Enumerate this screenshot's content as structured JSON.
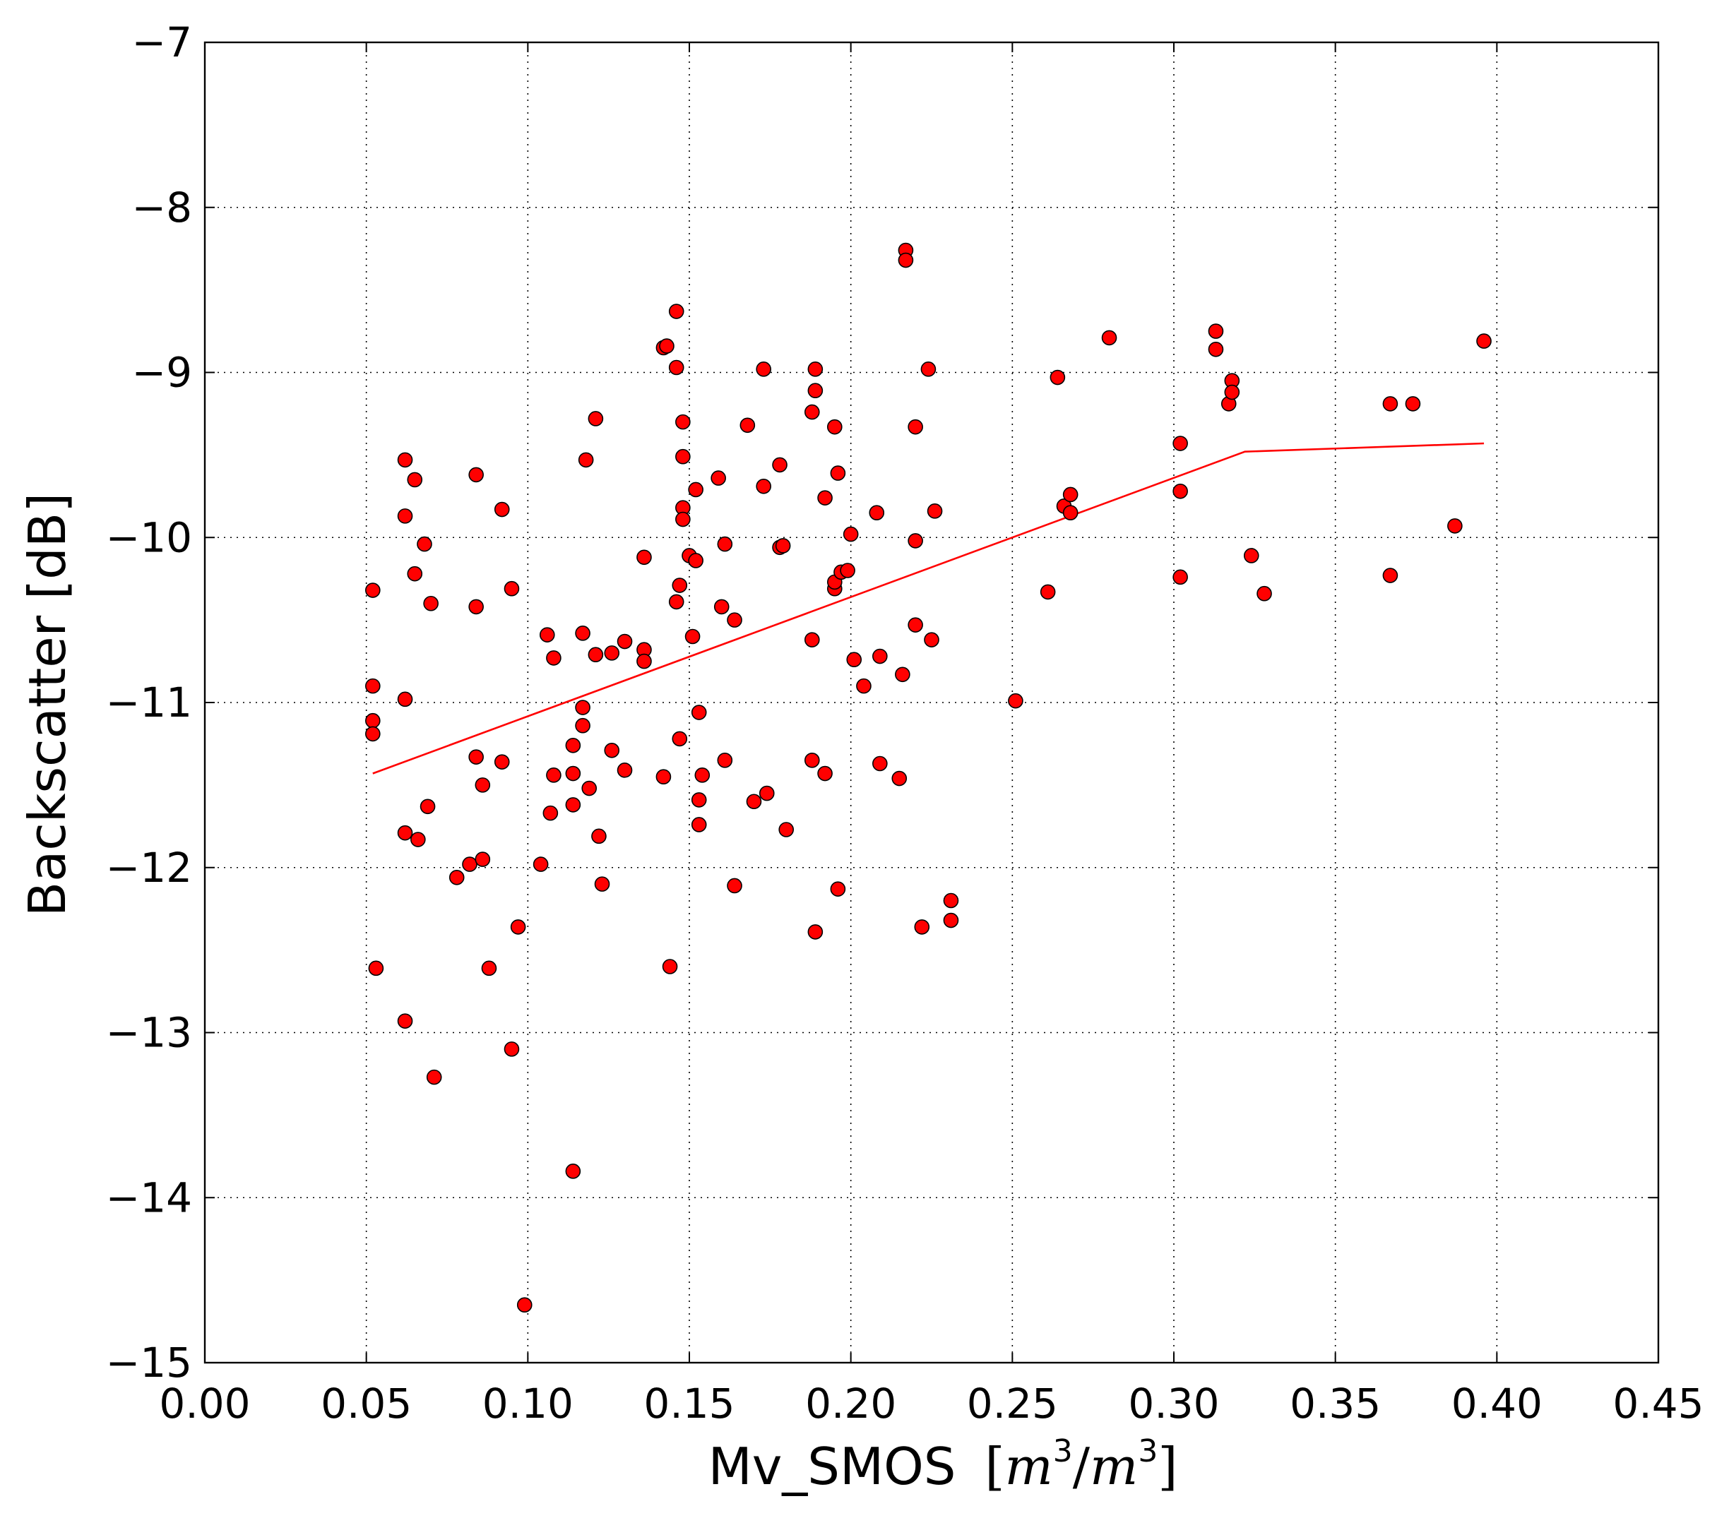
{
  "chart_data": {
    "type": "scatter",
    "title": "",
    "xlabel": "Mv_SMOS",
    "xlabel_unit": "[m^3/m^3]",
    "ylabel": "Backscatter [dB]",
    "xlim": [
      0.0,
      0.45
    ],
    "ylim": [
      -15,
      -7
    ],
    "xticks": [
      0.0,
      0.05,
      0.1,
      0.15,
      0.2,
      0.25,
      0.3,
      0.35,
      0.4,
      0.45
    ],
    "xtick_labels": [
      "0.00",
      "0.05",
      "0.10",
      "0.15",
      "0.20",
      "0.25",
      "0.30",
      "0.35",
      "0.40",
      "0.45"
    ],
    "yticks": [
      -15,
      -14,
      -13,
      -12,
      -11,
      -10,
      -9,
      -8,
      -7
    ],
    "ytick_labels": [
      "−15",
      "−14",
      "−13",
      "−12",
      "−11",
      "−10",
      "−9",
      "−8",
      "−7"
    ],
    "grid": true,
    "marker_color": "#ff0000",
    "marker_edge_color": "#000000",
    "line_color": "#ff0000",
    "points": [
      [
        0.052,
        -10.32
      ],
      [
        0.052,
        -10.9
      ],
      [
        0.052,
        -11.11
      ],
      [
        0.052,
        -11.19
      ],
      [
        0.053,
        -12.61
      ],
      [
        0.062,
        -9.53
      ],
      [
        0.062,
        -9.87
      ],
      [
        0.062,
        -10.98
      ],
      [
        0.062,
        -11.79
      ],
      [
        0.062,
        -12.93
      ],
      [
        0.065,
        -9.65
      ],
      [
        0.065,
        -10.22
      ],
      [
        0.066,
        -11.83
      ],
      [
        0.068,
        -10.04
      ],
      [
        0.069,
        -11.63
      ],
      [
        0.07,
        -10.4
      ],
      [
        0.071,
        -13.27
      ],
      [
        0.078,
        -12.06
      ],
      [
        0.082,
        -11.98
      ],
      [
        0.084,
        -9.62
      ],
      [
        0.084,
        -10.42
      ],
      [
        0.084,
        -11.33
      ],
      [
        0.086,
        -11.5
      ],
      [
        0.086,
        -11.95
      ],
      [
        0.088,
        -12.61
      ],
      [
        0.092,
        -9.83
      ],
      [
        0.092,
        -11.36
      ],
      [
        0.095,
        -10.31
      ],
      [
        0.095,
        -13.1
      ],
      [
        0.097,
        -12.36
      ],
      [
        0.099,
        -14.65
      ],
      [
        0.104,
        -11.98
      ],
      [
        0.106,
        -10.59
      ],
      [
        0.107,
        -11.67
      ],
      [
        0.108,
        -10.73
      ],
      [
        0.108,
        -11.44
      ],
      [
        0.114,
        -11.43
      ],
      [
        0.114,
        -11.26
      ],
      [
        0.114,
        -11.62
      ],
      [
        0.114,
        -13.84
      ],
      [
        0.117,
        -10.58
      ],
      [
        0.117,
        -11.03
      ],
      [
        0.117,
        -11.14
      ],
      [
        0.118,
        -9.53
      ],
      [
        0.119,
        -11.52
      ],
      [
        0.121,
        -9.28
      ],
      [
        0.121,
        -10.71
      ],
      [
        0.122,
        -11.81
      ],
      [
        0.123,
        -12.1
      ],
      [
        0.126,
        -10.7
      ],
      [
        0.126,
        -11.29
      ],
      [
        0.13,
        -10.63
      ],
      [
        0.13,
        -11.41
      ],
      [
        0.136,
        -10.12
      ],
      [
        0.136,
        -10.68
      ],
      [
        0.136,
        -10.75
      ],
      [
        0.142,
        -8.85
      ],
      [
        0.142,
        -11.45
      ],
      [
        0.143,
        -8.84
      ],
      [
        0.144,
        -12.6
      ],
      [
        0.146,
        -8.63
      ],
      [
        0.146,
        -8.97
      ],
      [
        0.146,
        -10.39
      ],
      [
        0.147,
        -10.29
      ],
      [
        0.147,
        -11.22
      ],
      [
        0.148,
        -9.3
      ],
      [
        0.148,
        -9.51
      ],
      [
        0.148,
        -9.82
      ],
      [
        0.148,
        -9.89
      ],
      [
        0.15,
        -10.11
      ],
      [
        0.151,
        -10.6
      ],
      [
        0.152,
        -9.71
      ],
      [
        0.152,
        -10.14
      ],
      [
        0.153,
        -11.06
      ],
      [
        0.153,
        -11.59
      ],
      [
        0.153,
        -11.74
      ],
      [
        0.154,
        -11.44
      ],
      [
        0.159,
        -9.64
      ],
      [
        0.16,
        -10.42
      ],
      [
        0.161,
        -10.04
      ],
      [
        0.161,
        -11.35
      ],
      [
        0.164,
        -10.5
      ],
      [
        0.164,
        -12.11
      ],
      [
        0.168,
        -9.32
      ],
      [
        0.17,
        -11.6
      ],
      [
        0.173,
        -8.98
      ],
      [
        0.173,
        -9.69
      ],
      [
        0.174,
        -11.55
      ],
      [
        0.178,
        -9.56
      ],
      [
        0.178,
        -10.06
      ],
      [
        0.179,
        -10.05
      ],
      [
        0.18,
        -11.77
      ],
      [
        0.188,
        -9.24
      ],
      [
        0.188,
        -10.62
      ],
      [
        0.188,
        -11.35
      ],
      [
        0.189,
        -8.98
      ],
      [
        0.189,
        -9.11
      ],
      [
        0.189,
        -12.39
      ],
      [
        0.192,
        -9.76
      ],
      [
        0.192,
        -11.43
      ],
      [
        0.195,
        -9.33
      ],
      [
        0.195,
        -10.31
      ],
      [
        0.195,
        -10.27
      ],
      [
        0.196,
        -9.61
      ],
      [
        0.196,
        -12.13
      ],
      [
        0.197,
        -10.21
      ],
      [
        0.199,
        -10.2
      ],
      [
        0.2,
        -9.98
      ],
      [
        0.201,
        -10.74
      ],
      [
        0.204,
        -10.9
      ],
      [
        0.208,
        -9.85
      ],
      [
        0.209,
        -10.72
      ],
      [
        0.209,
        -11.37
      ],
      [
        0.215,
        -11.46
      ],
      [
        0.216,
        -10.83
      ],
      [
        0.217,
        -8.26
      ],
      [
        0.217,
        -8.32
      ],
      [
        0.22,
        -9.33
      ],
      [
        0.22,
        -10.02
      ],
      [
        0.22,
        -10.53
      ],
      [
        0.222,
        -12.36
      ],
      [
        0.224,
        -8.98
      ],
      [
        0.225,
        -10.62
      ],
      [
        0.226,
        -9.84
      ],
      [
        0.231,
        -12.2
      ],
      [
        0.231,
        -12.32
      ],
      [
        0.251,
        -10.99
      ],
      [
        0.261,
        -10.33
      ],
      [
        0.264,
        -9.03
      ],
      [
        0.266,
        -9.81
      ],
      [
        0.268,
        -9.85
      ],
      [
        0.268,
        -9.74
      ],
      [
        0.28,
        -8.79
      ],
      [
        0.302,
        -9.43
      ],
      [
        0.302,
        -9.72
      ],
      [
        0.302,
        -10.24
      ],
      [
        0.313,
        -8.75
      ],
      [
        0.313,
        -8.86
      ],
      [
        0.317,
        -9.19
      ],
      [
        0.318,
        -9.05
      ],
      [
        0.318,
        -9.12
      ],
      [
        0.324,
        -10.11
      ],
      [
        0.328,
        -10.34
      ],
      [
        0.367,
        -9.19
      ],
      [
        0.367,
        -10.23
      ],
      [
        0.374,
        -9.19
      ],
      [
        0.387,
        -9.93
      ],
      [
        0.396,
        -8.81
      ]
    ],
    "fit_line": [
      [
        0.052,
        -11.43
      ],
      [
        0.322,
        -9.48
      ],
      [
        0.396,
        -9.43
      ]
    ]
  }
}
